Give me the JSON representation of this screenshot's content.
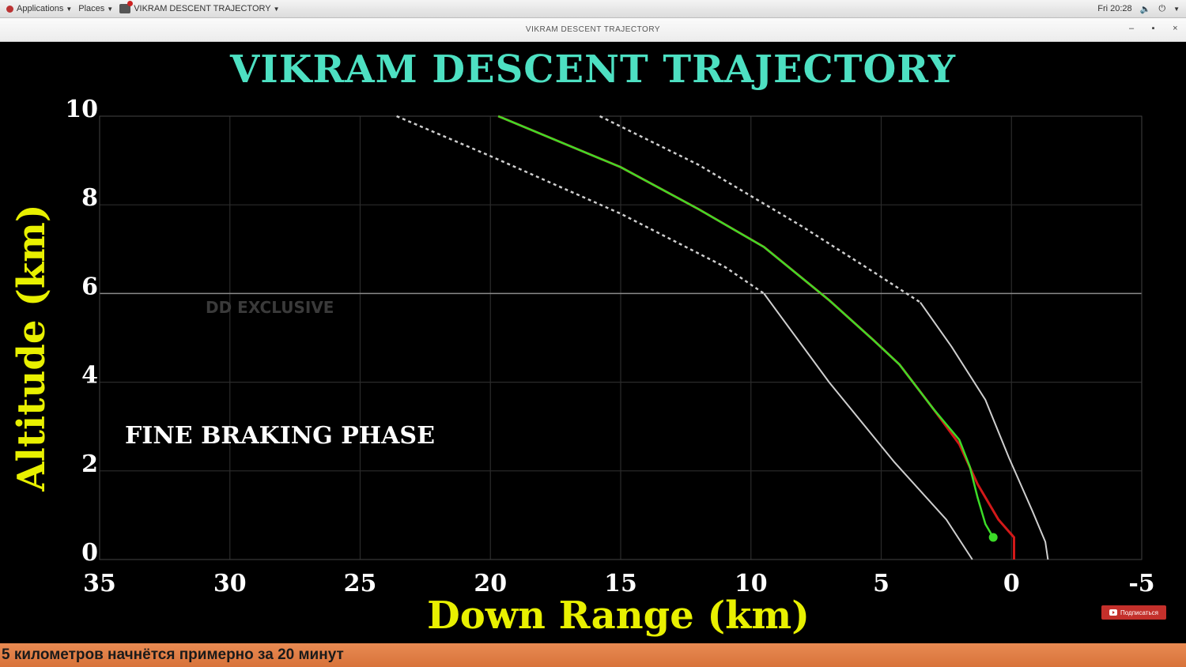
{
  "top_panel": {
    "applications_label": "Applications",
    "places_label": "Places",
    "active_app_label": "VIKRAM DESCENT TRAJECTORY",
    "clock": "Fri 20:28"
  },
  "window": {
    "title": "VIKRAM DESCENT TRAJECTORY"
  },
  "phase_label": "FINE BRAKING PHASE",
  "watermark": "DD EXCLUSIVE",
  "subscribe_label": "Подписаться",
  "ticker_text": "5 километров начнётся примерно за 20 минут",
  "colors": {
    "title": "#4de0c2",
    "axis_label": "#e8f000",
    "planned_path": "#d21919",
    "actual_path": "#3cdc28",
    "boundary": "#cfcfcf"
  },
  "chart_data": {
    "type": "line",
    "title": "VIKRAM DESCENT TRAJECTORY",
    "xlabel": "Down Range (km)",
    "ylabel": "Altitude (km)",
    "xlim": [
      35,
      -5
    ],
    "ylim": [
      0,
      10
    ],
    "x_ticks": [
      "35",
      "30",
      "25",
      "20",
      "15",
      "10",
      "5",
      "0",
      "-5"
    ],
    "y_ticks": [
      "0",
      "2",
      "4",
      "6",
      "8",
      "10"
    ],
    "grid": true,
    "series": [
      {
        "key": "outer_boundary",
        "style": "white-dashed-then-solid",
        "x": [
          23.6,
          20,
          15,
          11,
          9.5,
          7,
          4.5,
          2.5,
          1.5
        ],
        "y": [
          10,
          9.1,
          7.8,
          6.6,
          6.0,
          4.0,
          2.2,
          0.9,
          0
        ]
      },
      {
        "key": "inner_boundary",
        "style": "white-dashed-then-solid",
        "x": [
          15.8,
          12,
          8,
          5.2,
          3.5,
          2.3,
          1.0,
          0.1,
          -0.8,
          -1.3,
          -1.4
        ],
        "y": [
          10,
          8.9,
          7.5,
          6.45,
          5.8,
          4.8,
          3.6,
          2.3,
          1.1,
          0.4,
          0
        ]
      },
      {
        "key": "planned_path",
        "style": "red",
        "x": [
          19.7,
          15,
          12,
          9.5,
          7,
          5.3,
          4.3,
          3,
          2,
          1.3,
          0.5,
          -0.1,
          -0.1
        ],
        "y": [
          10,
          8.85,
          7.9,
          7.05,
          5.85,
          4.95,
          4.4,
          3.4,
          2.6,
          1.7,
          0.9,
          0.5,
          0
        ]
      },
      {
        "key": "actual_path",
        "style": "green",
        "x": [
          19.7,
          15,
          12,
          9.5,
          7,
          5.3,
          4.3,
          3,
          2.0,
          1.6,
          1.3,
          1.0,
          0.7
        ],
        "y": [
          10,
          8.85,
          7.9,
          7.05,
          5.85,
          4.95,
          4.4,
          3.4,
          2.7,
          2.1,
          1.4,
          0.8,
          0.5
        ]
      }
    ],
    "marker": {
      "x": 0.7,
      "y": 0.5
    }
  }
}
